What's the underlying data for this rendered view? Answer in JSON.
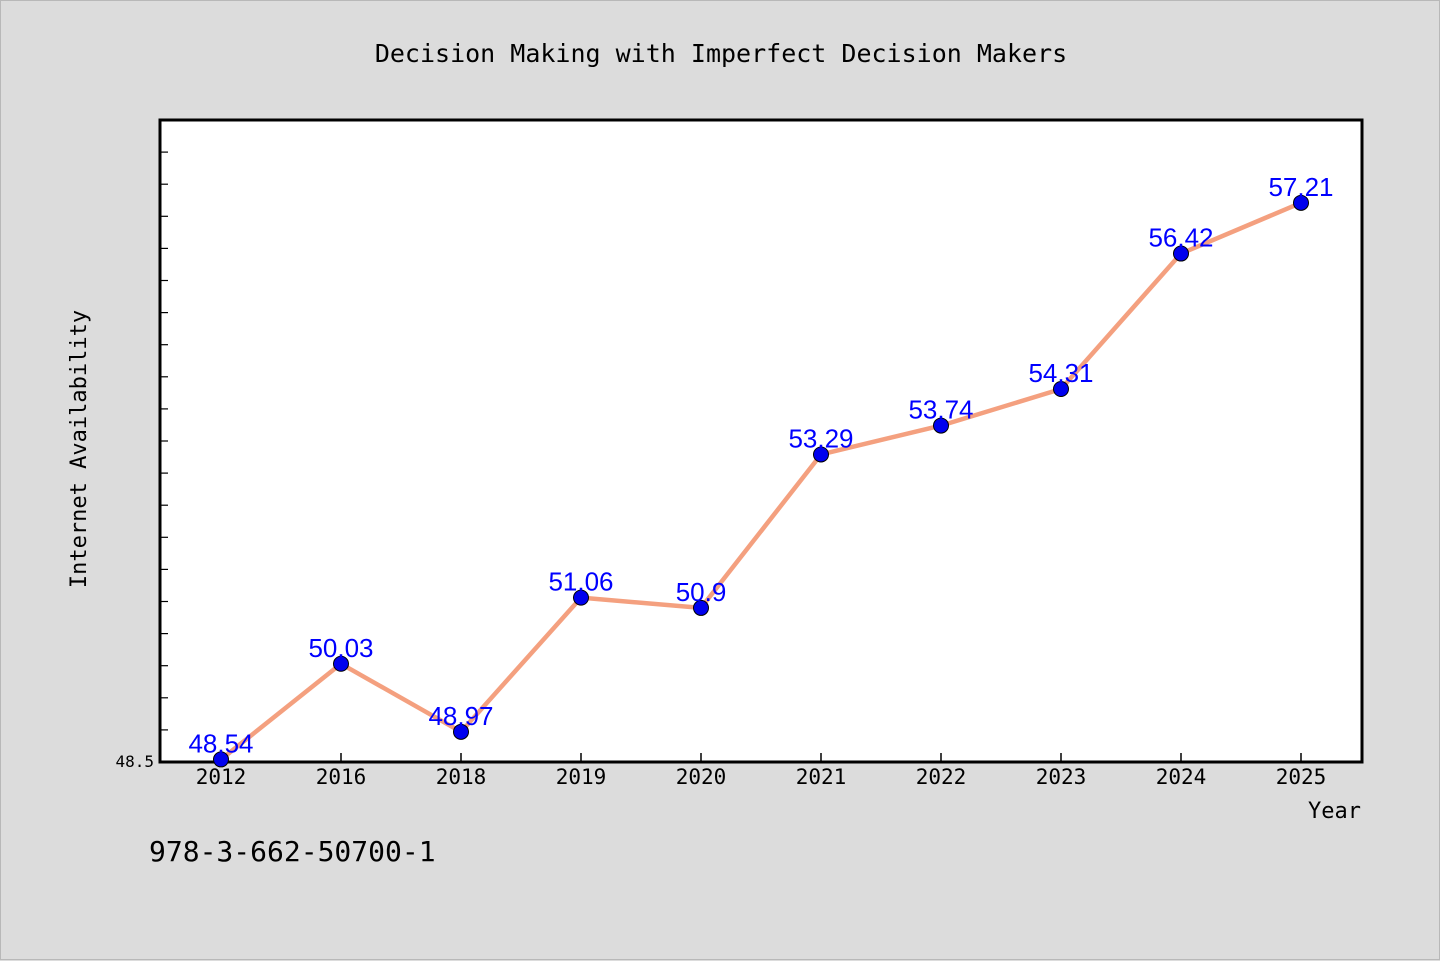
{
  "chart_data": {
    "type": "line",
    "title": "Decision Making with Imperfect Decision Makers",
    "xlabel": "Year",
    "ylabel": "Internet Availability",
    "categories": [
      "2012",
      "2016",
      "2018",
      "2019",
      "2020",
      "2021",
      "2022",
      "2023",
      "2024",
      "2025"
    ],
    "series": [
      {
        "values": [
          48.54,
          50.03,
          48.97,
          51.06,
          50.9,
          53.29,
          53.74,
          54.31,
          56.42,
          57.21
        ],
        "data_labels": [
          "48.54",
          "50.03",
          "48.97",
          "51.06",
          "50.9",
          "53.29",
          "53.74",
          "54.31",
          "56.42",
          "57.21"
        ]
      }
    ],
    "ylim": [
      48.5,
      58.5
    ],
    "ytick_labels": [
      "48.5"
    ],
    "grid": false,
    "line_color": "#f4a07f",
    "marker_color": "#0000ee",
    "label_color": "#0000ff"
  },
  "footer": {
    "isbn": "978-3-662-50700-1"
  }
}
